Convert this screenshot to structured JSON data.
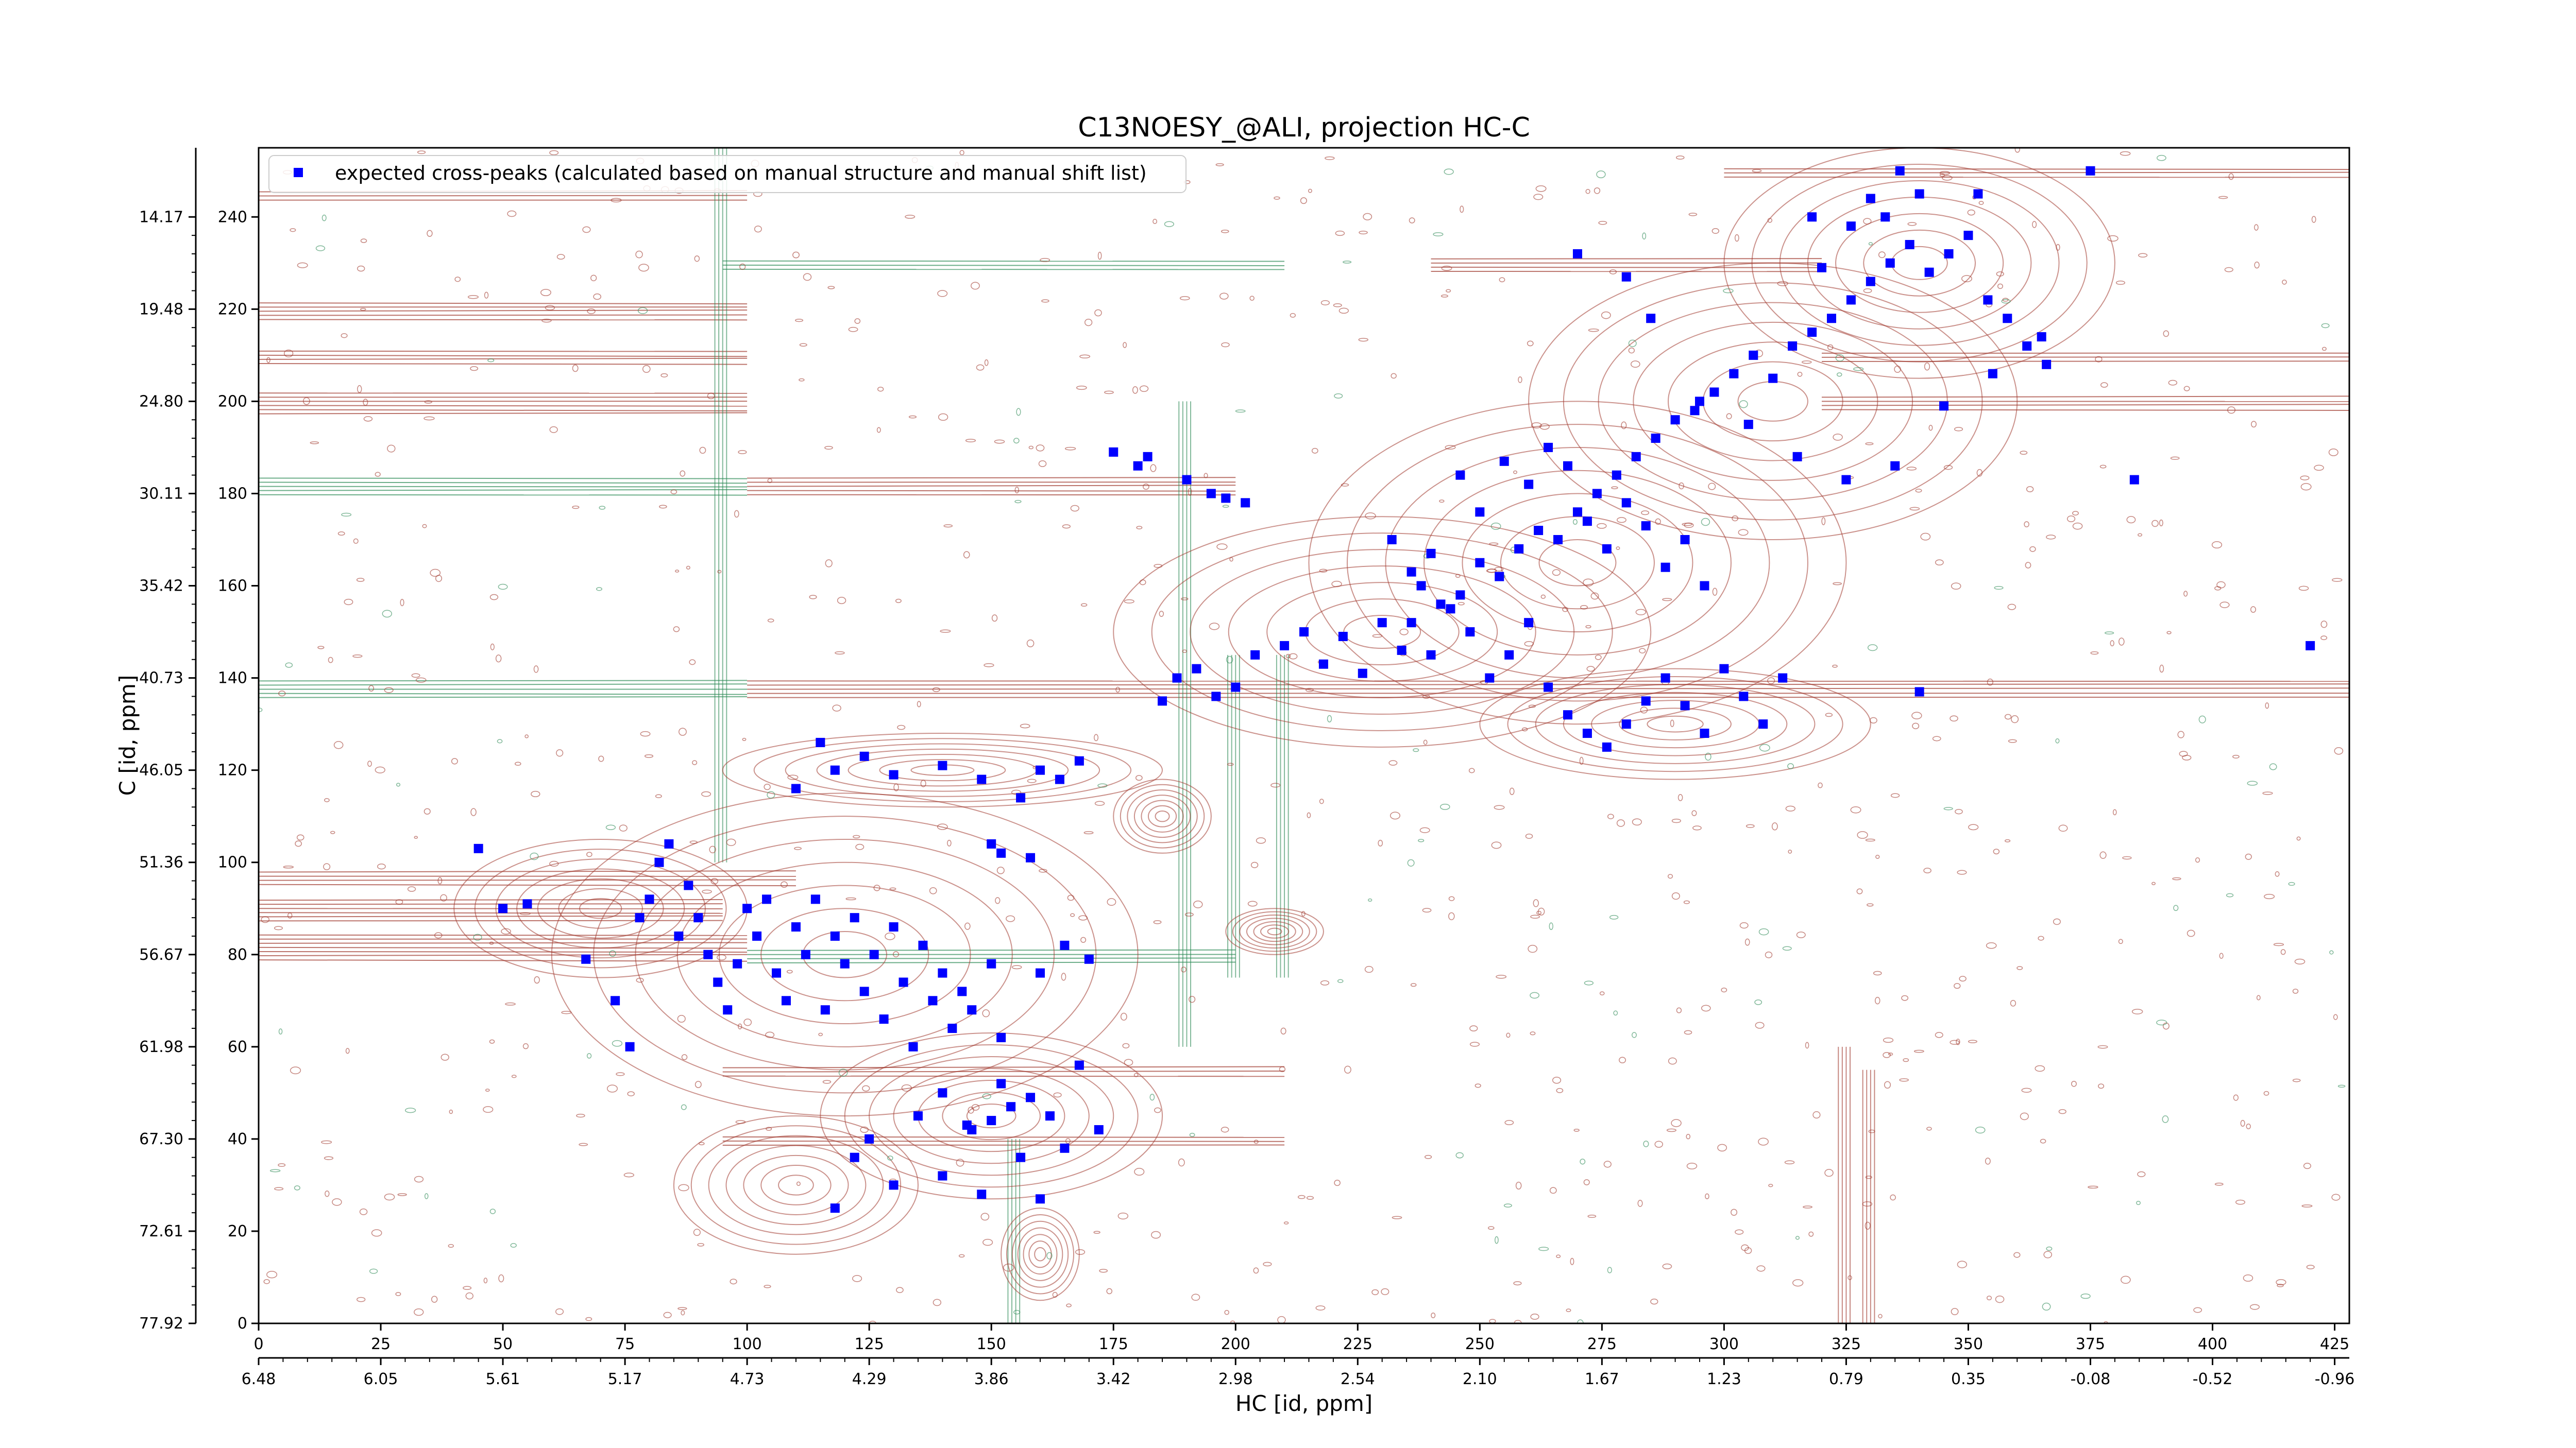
{
  "chart_data": {
    "type": "scatter",
    "title": "C13NOESY_@ALI, projection HC-C",
    "xlabel": "HC [id, ppm]",
    "ylabel": "C [id, ppm]",
    "x_index_range": [
      0,
      428
    ],
    "y_index_range": [
      0,
      255
    ],
    "x_index_ticks": [
      "0",
      "25",
      "50",
      "75",
      "100",
      "125",
      "150",
      "175",
      "200",
      "225",
      "250",
      "275",
      "300",
      "325",
      "350",
      "375",
      "400",
      "425"
    ],
    "x_ppm_ticks": [
      "6.48",
      "6.05",
      "5.61",
      "5.17",
      "4.73",
      "4.29",
      "3.86",
      "3.42",
      "2.98",
      "2.54",
      "2.10",
      "1.67",
      "1.23",
      "0.79",
      "0.35",
      "-0.08",
      "-0.52",
      "-0.96"
    ],
    "y_index_ticks": [
      "0",
      "20",
      "40",
      "60",
      "80",
      "100",
      "120",
      "140",
      "160",
      "180",
      "200",
      "220",
      "240"
    ],
    "y_ppm_ticks": [
      "77.92",
      "72.61",
      "67.30",
      "61.98",
      "56.67",
      "51.36",
      "46.05",
      "40.73",
      "35.42",
      "30.11",
      "24.80",
      "19.48",
      "14.17"
    ],
    "contour_colors": {
      "positive": "#a0392d",
      "negative": "#2e8b57"
    },
    "marker_color": "#0000ff",
    "legend": {
      "position": "top-left",
      "entries": [
        "expected cross-peaks (calculated based on manual structure and manual shift list)"
      ]
    },
    "series": [
      {
        "name": "expected cross-peaks (calculated based on manual structure and manual shift list)",
        "points": [
          [
            45,
            103
          ],
          [
            50,
            90
          ],
          [
            55,
            91
          ],
          [
            67,
            79
          ],
          [
            73,
            70
          ],
          [
            76,
            60
          ],
          [
            78,
            88
          ],
          [
            80,
            92
          ],
          [
            82,
            100
          ],
          [
            84,
            104
          ],
          [
            86,
            84
          ],
          [
            88,
            95
          ],
          [
            90,
            88
          ],
          [
            92,
            80
          ],
          [
            94,
            74
          ],
          [
            96,
            68
          ],
          [
            98,
            78
          ],
          [
            100,
            90
          ],
          [
            102,
            84
          ],
          [
            104,
            92
          ],
          [
            106,
            76
          ],
          [
            108,
            70
          ],
          [
            110,
            86
          ],
          [
            112,
            80
          ],
          [
            114,
            92
          ],
          [
            116,
            68
          ],
          [
            118,
            84
          ],
          [
            120,
            78
          ],
          [
            122,
            88
          ],
          [
            124,
            72
          ],
          [
            126,
            80
          ],
          [
            128,
            66
          ],
          [
            130,
            86
          ],
          [
            132,
            74
          ],
          [
            134,
            60
          ],
          [
            136,
            82
          ],
          [
            138,
            70
          ],
          [
            140,
            76
          ],
          [
            142,
            64
          ],
          [
            144,
            72
          ],
          [
            146,
            68
          ],
          [
            150,
            78
          ],
          [
            152,
            62
          ],
          [
            110,
            116
          ],
          [
            115,
            126
          ],
          [
            118,
            120
          ],
          [
            124,
            123
          ],
          [
            130,
            119
          ],
          [
            140,
            121
          ],
          [
            148,
            118
          ],
          [
            156,
            114
          ],
          [
            160,
            120
          ],
          [
            164,
            118
          ],
          [
            168,
            122
          ],
          [
            150,
            104
          ],
          [
            152,
            102
          ],
          [
            158,
            101
          ],
          [
            125,
            40
          ],
          [
            135,
            45
          ],
          [
            140,
            50
          ],
          [
            146,
            42
          ],
          [
            150,
            44
          ],
          [
            154,
            47
          ],
          [
            158,
            49
          ],
          [
            162,
            45
          ],
          [
            168,
            56
          ],
          [
            172,
            42
          ],
          [
            118,
            25
          ],
          [
            122,
            36
          ],
          [
            130,
            30
          ],
          [
            140,
            32
          ],
          [
            148,
            28
          ],
          [
            156,
            36
          ],
          [
            160,
            27
          ],
          [
            165,
            38
          ],
          [
            145,
            43
          ],
          [
            152,
            52
          ],
          [
            160,
            76
          ],
          [
            165,
            82
          ],
          [
            170,
            79
          ],
          [
            175,
            189
          ],
          [
            180,
            186
          ],
          [
            182,
            188
          ],
          [
            190,
            183
          ],
          [
            195,
            180
          ],
          [
            198,
            179
          ],
          [
            202,
            178
          ],
          [
            185,
            135
          ],
          [
            188,
            140
          ],
          [
            192,
            142
          ],
          [
            196,
            136
          ],
          [
            200,
            138
          ],
          [
            204,
            145
          ],
          [
            210,
            147
          ],
          [
            214,
            150
          ],
          [
            218,
            143
          ],
          [
            222,
            149
          ],
          [
            226,
            141
          ],
          [
            230,
            152
          ],
          [
            234,
            146
          ],
          [
            238,
            160
          ],
          [
            242,
            156
          ],
          [
            246,
            158
          ],
          [
            250,
            165
          ],
          [
            254,
            162
          ],
          [
            258,
            168
          ],
          [
            262,
            172
          ],
          [
            266,
            170
          ],
          [
            270,
            176
          ],
          [
            274,
            180
          ],
          [
            278,
            184
          ],
          [
            282,
            188
          ],
          [
            286,
            192
          ],
          [
            290,
            196
          ],
          [
            294,
            198
          ],
          [
            298,
            202
          ],
          [
            302,
            206
          ],
          [
            306,
            210
          ],
          [
            310,
            205
          ],
          [
            314,
            212
          ],
          [
            318,
            215
          ],
          [
            322,
            218
          ],
          [
            326,
            222
          ],
          [
            330,
            226
          ],
          [
            334,
            230
          ],
          [
            338,
            234
          ],
          [
            342,
            228
          ],
          [
            346,
            232
          ],
          [
            350,
            236
          ],
          [
            354,
            222
          ],
          [
            358,
            218
          ],
          [
            362,
            212
          ],
          [
            366,
            208
          ],
          [
            340,
            245
          ],
          [
            336,
            250
          ],
          [
            330,
            244
          ],
          [
            326,
            238
          ],
          [
            333,
            240
          ],
          [
            352,
            245
          ],
          [
            375,
            250
          ],
          [
            318,
            240
          ],
          [
            320,
            229
          ],
          [
            246,
            184
          ],
          [
            250,
            176
          ],
          [
            255,
            187
          ],
          [
            260,
            182
          ],
          [
            264,
            190
          ],
          [
            268,
            186
          ],
          [
            272,
            174
          ],
          [
            276,
            168
          ],
          [
            280,
            178
          ],
          [
            284,
            173
          ],
          [
            288,
            164
          ],
          [
            292,
            170
          ],
          [
            296,
            160
          ],
          [
            248,
            150
          ],
          [
            252,
            140
          ],
          [
            256,
            145
          ],
          [
            260,
            152
          ],
          [
            264,
            138
          ],
          [
            268,
            132
          ],
          [
            272,
            128
          ],
          [
            276,
            125
          ],
          [
            280,
            130
          ],
          [
            284,
            135
          ],
          [
            288,
            140
          ],
          [
            292,
            134
          ],
          [
            296,
            128
          ],
          [
            300,
            142
          ],
          [
            304,
            136
          ],
          [
            308,
            130
          ],
          [
            312,
            140
          ],
          [
            384,
            183
          ],
          [
            420,
            147
          ],
          [
            340,
            137
          ],
          [
            280,
            227
          ],
          [
            270,
            232
          ],
          [
            285,
            218
          ],
          [
            295,
            200
          ],
          [
            305,
            195
          ],
          [
            315,
            188
          ],
          [
            325,
            183
          ],
          [
            335,
            186
          ],
          [
            345,
            199
          ],
          [
            355,
            206
          ],
          [
            365,
            214
          ],
          [
            232,
            170
          ],
          [
            236,
            163
          ],
          [
            240,
            167
          ],
          [
            244,
            155
          ],
          [
            236,
            152
          ],
          [
            240,
            145
          ]
        ]
      }
    ]
  }
}
